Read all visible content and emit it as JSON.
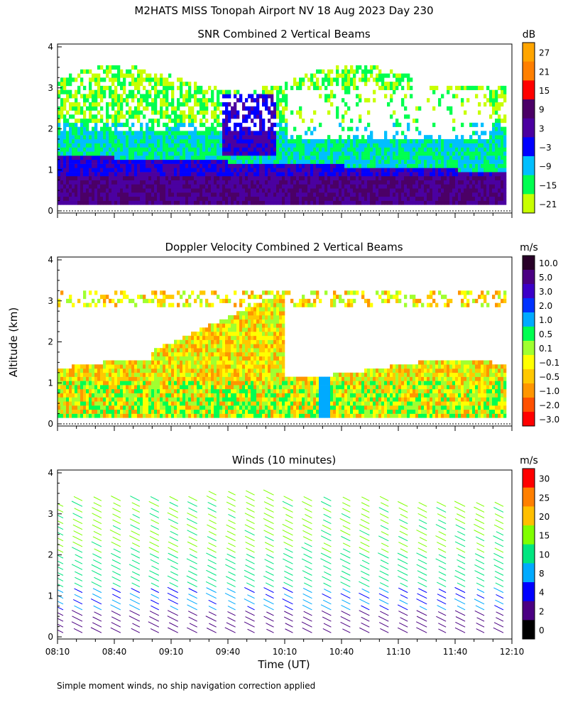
{
  "title": "M2HATS MISS Tonopah Airport NV  18 Aug 2023 Day 230",
  "ylabel": "Altitude (km)",
  "xlabel": "Time (UT)",
  "footnote": "Simple moment winds, no ship navigation correction applied",
  "time_ticks": [
    "08:10",
    "08:40",
    "09:10",
    "09:40",
    "10:10",
    "10:40",
    "11:10",
    "11:40",
    "12:10"
  ],
  "chart_data": [
    {
      "type": "heatmap",
      "title": "SNR Combined 2 Vertical Beams",
      "colorbar_unit": "dB",
      "colorbar_labels": [
        "27",
        "21",
        "15",
        "9",
        "3",
        "−3",
        "−9",
        "−15",
        "−21"
      ],
      "colorbar_colors": [
        "#ffa500",
        "#ff7f00",
        "#ff0000",
        "#4b0066",
        "#4b00a0",
        "#0000ff",
        "#00bfff",
        "#00ff50",
        "#c8ff00"
      ],
      "ylim": [
        0,
        4
      ],
      "yticks": [
        "0",
        "1",
        "2",
        "3",
        "4"
      ],
      "time_range_ut": [
        "08:10",
        "12:10"
      ]
    },
    {
      "type": "heatmap",
      "title": "Doppler Velocity Combined 2 Vertical Beams",
      "colorbar_unit": "m/s",
      "colorbar_labels": [
        "10.0",
        "5.0",
        "3.0",
        "2.0",
        "1.0",
        "0.5",
        "0.1",
        "−0.1",
        "−0.5",
        "−1.0",
        "−2.0",
        "−3.0"
      ],
      "colorbar_colors": [
        "#280028",
        "#4b0082",
        "#3c00c8",
        "#0032ff",
        "#00aaff",
        "#00ff50",
        "#a0ff30",
        "#ffff00",
        "#ffc800",
        "#ff9600",
        "#ff5000",
        "#ff0000"
      ],
      "ylim": [
        0,
        4
      ],
      "yticks": [
        "0",
        "1",
        "2",
        "3",
        "4"
      ],
      "time_range_ut": [
        "08:10",
        "12:10"
      ]
    },
    {
      "type": "scatter",
      "title": "Winds (10 minutes)",
      "colorbar_unit": "m/s",
      "colorbar_labels": [
        "30",
        "25",
        "20",
        "15",
        "10",
        "8",
        "4",
        "2",
        "0"
      ],
      "colorbar_colors": [
        "#ff0000",
        "#ff7f00",
        "#ffbf00",
        "#80ff00",
        "#00e680",
        "#00aaff",
        "#0000ff",
        "#4b0082",
        "#000000"
      ],
      "ylim": [
        0,
        4
      ],
      "yticks": [
        "0",
        "1",
        "2",
        "3",
        "4"
      ],
      "time_range_ut": [
        "08:10",
        "12:10"
      ]
    }
  ]
}
